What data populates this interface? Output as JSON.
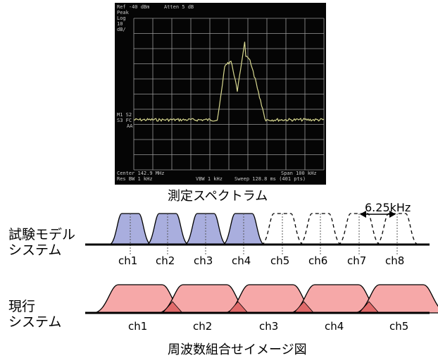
{
  "analyzer": {
    "ref_level": "Ref -40 dBm",
    "atten": "Atten 5 dB",
    "mode_peak": "Peak",
    "mode_log": "Log",
    "scale_value": "10",
    "scale_unit": "dB/",
    "marker_m1s2": "M1 S2",
    "marker_s3fc": "S3 FC",
    "marker_aa": "AA",
    "center": "Center 142.9 MHz",
    "res_bw": "Res BW 1 kHz",
    "vbw": "VBW 1 kHz",
    "span": "Span 100 kHz",
    "sweep": "Sweep 128.8 ms (401 pts)",
    "trace_color": "#d8d890"
  },
  "captions": {
    "spectrum": "測定スペクトラム",
    "figure": "周波数組合せイメージ図",
    "spacing": "6.25kHz"
  },
  "test_system": {
    "label_line1": "試験モデル",
    "label_line2": "システム",
    "channels": [
      "ch1",
      "ch2",
      "ch3",
      "ch4",
      "ch5",
      "ch6",
      "ch7",
      "ch8"
    ],
    "active_count": 4,
    "fill_color": "#a9aede"
  },
  "current_system": {
    "label_line1": "現行",
    "label_line2": "システム",
    "channels": [
      "ch1",
      "ch2",
      "ch3",
      "ch4",
      "ch5"
    ],
    "fill_color": "#f6a8a8",
    "overlap_color": "#e06a6a"
  }
}
